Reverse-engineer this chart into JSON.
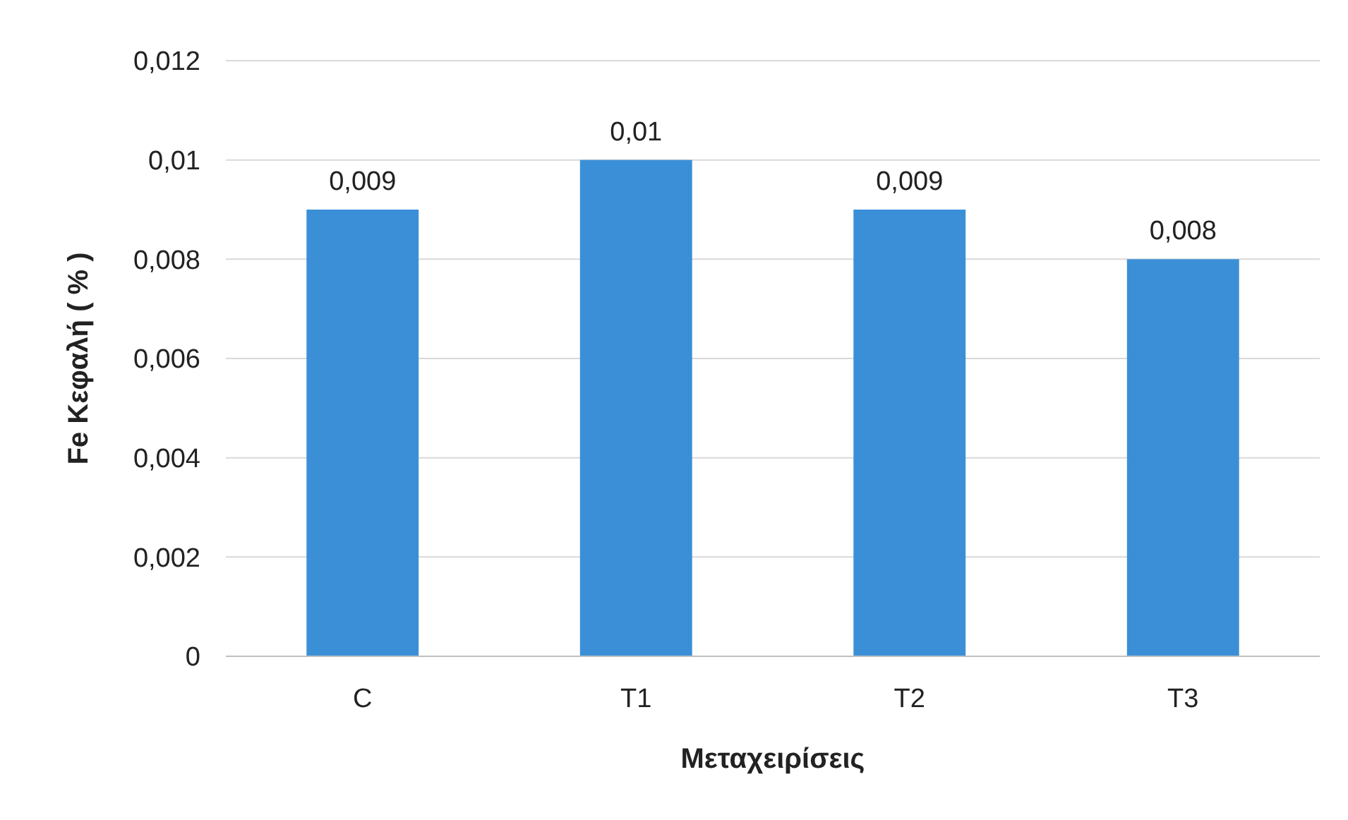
{
  "chart_data": {
    "type": "bar",
    "xlabel": "Μεταχειρίσεις",
    "ylabel": "Fe Κεφαλή ( % )",
    "categories": [
      "C",
      "T1",
      "T2",
      "T3"
    ],
    "values": [
      0.009,
      0.01,
      0.009,
      0.008
    ],
    "value_labels": [
      "0,009",
      "0,01",
      "0,009",
      "0,008"
    ],
    "color": "#3b8fd7",
    "ylim": [
      0,
      0.012
    ],
    "yticks": [
      0,
      {
        "value": 0.002,
        "label": "0,002"
      },
      {
        "value": 0.004,
        "label": "0,004"
      },
      {
        "value": 0.006,
        "label": "0,006"
      },
      {
        "value": 0.008,
        "label": "0,008"
      },
      {
        "value": 0.01,
        "label": "0,01"
      },
      {
        "value": 0.012,
        "label": "0,012"
      }
    ],
    "grid": "y"
  }
}
